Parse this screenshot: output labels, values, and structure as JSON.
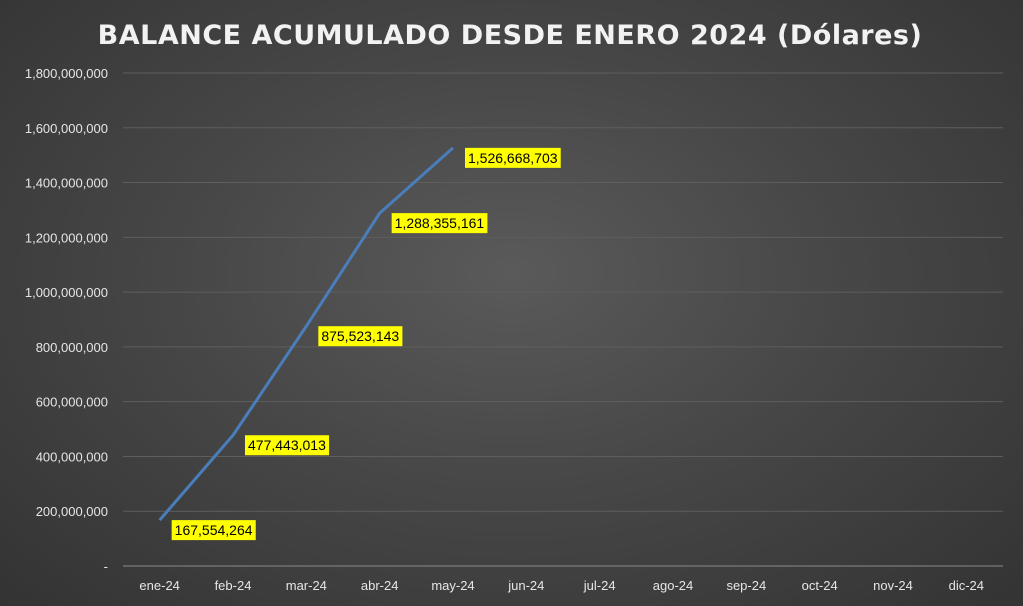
{
  "chart_data": {
    "type": "line",
    "title": "BALANCE ACUMULADO DESDE ENERO 2024 (Dólares)",
    "categories": [
      "ene-24",
      "feb-24",
      "mar-24",
      "abr-24",
      "may-24",
      "jun-24",
      "jul-24",
      "ago-24",
      "sep-24",
      "oct-24",
      "nov-24",
      "dic-24"
    ],
    "series": [
      {
        "values": [
          167554264,
          477443013,
          875523143,
          1288355161,
          1526668703,
          null,
          null,
          null,
          null,
          null,
          null,
          null
        ],
        "labels": [
          "167,554,264",
          "477,443,013",
          "875,523,143",
          "1,288,355,161",
          "1,526,668,703"
        ]
      }
    ],
    "yticks": [
      {
        "value": 0,
        "label": "-"
      },
      {
        "value": 200000000,
        "label": "200,000,000"
      },
      {
        "value": 400000000,
        "label": "400,000,000"
      },
      {
        "value": 600000000,
        "label": "600,000,000"
      },
      {
        "value": 800000000,
        "label": "800,000,000"
      },
      {
        "value": 1000000000,
        "label": "1,000,000,000"
      },
      {
        "value": 1200000000,
        "label": "1,200,000,000"
      },
      {
        "value": 1400000000,
        "label": "1,400,000,000"
      },
      {
        "value": 1600000000,
        "label": "1,600,000,000"
      },
      {
        "value": 1800000000,
        "label": "1,800,000,000"
      }
    ],
    "ylim": [
      0,
      1800000000
    ],
    "grid": true,
    "legend": "none",
    "colors": {
      "line": "#4a7ebb",
      "label_bg": "#ffff00",
      "grid": "#5e5e5e",
      "axis": "#8a8a8a"
    }
  }
}
